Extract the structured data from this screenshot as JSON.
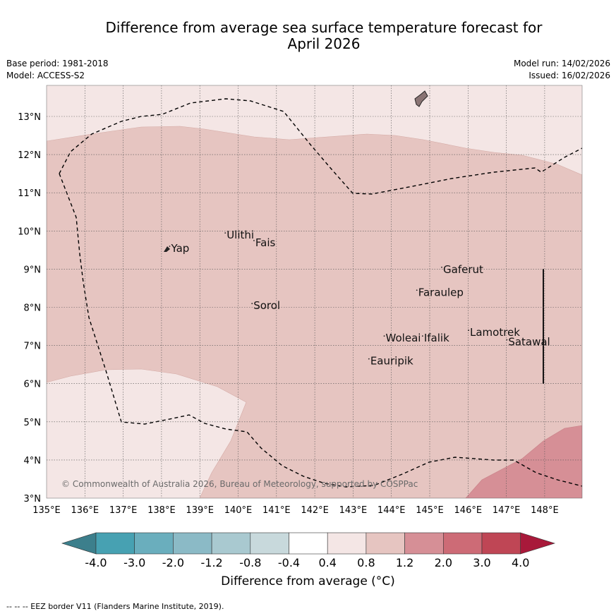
{
  "title_line1": "Difference from average sea surface temperature forecast for",
  "title_line2": "April 2026",
  "base_period": "Base period: 1981-2018",
  "model": "Model: ACCESS-S2",
  "model_run": "Model run: 14/02/2026",
  "issued": "Issued: 16/02/2026",
  "copyright": "© Commonwealth of Australia 2026, Bureau of Meteorology, supported by COSPPac",
  "lon_labels": [
    "135°E",
    "136°E",
    "137°E",
    "138°E",
    "139°E",
    "140°E",
    "141°E",
    "142°E",
    "143°E",
    "144°E",
    "145°E",
    "146°E",
    "147°E",
    "148°E"
  ],
  "lat_labels": [
    "3°N",
    "4°N",
    "5°N",
    "6°N",
    "7°N",
    "8°N",
    "9°N",
    "10°N",
    "11°N",
    "12°N",
    "13°N"
  ],
  "places": [
    {
      "name": "Yap",
      "lon": 138.25,
      "lat": 9.45
    },
    {
      "name": "Ulithi",
      "lon": 139.7,
      "lat": 9.8
    },
    {
      "name": "Fais",
      "lon": 140.45,
      "lat": 9.6
    },
    {
      "name": "Gaferut",
      "lon": 145.35,
      "lat": 8.9
    },
    {
      "name": "Faraulep",
      "lon": 144.7,
      "lat": 8.3
    },
    {
      "name": "Sorol",
      "lon": 140.4,
      "lat": 7.95
    },
    {
      "name": "Woleai",
      "lon": 143.85,
      "lat": 7.1
    },
    {
      "name": "Ifalik",
      "lon": 144.85,
      "lat": 7.1
    },
    {
      "name": "Lamotrek",
      "lon": 146.05,
      "lat": 7.25
    },
    {
      "name": "Satawal",
      "lon": 147.05,
      "lat": 7.0
    },
    {
      "name": "Eauripik",
      "lon": 143.45,
      "lat": 6.5
    }
  ],
  "colorbar": {
    "ticks": [
      "-4.0",
      "-3.0",
      "-2.0",
      "-1.2",
      "-0.8",
      "-0.4",
      "0.4",
      "0.8",
      "1.2",
      "2.0",
      "3.0",
      "4.0"
    ],
    "colors": [
      "#3c7f8c",
      "#47a1b2",
      "#6aaebd",
      "#8bbac6",
      "#a9c9d0",
      "#c8d9dc",
      "#ffffff",
      "#f4e6e5",
      "#e6c5c1",
      "#d68f96",
      "#cd6b76",
      "#bf4655",
      "#a8193a"
    ],
    "label": "Difference from average (°C)"
  },
  "footer": "--  --  -- EEZ border V11 (Flanders Marine Institute, 2019)."
}
